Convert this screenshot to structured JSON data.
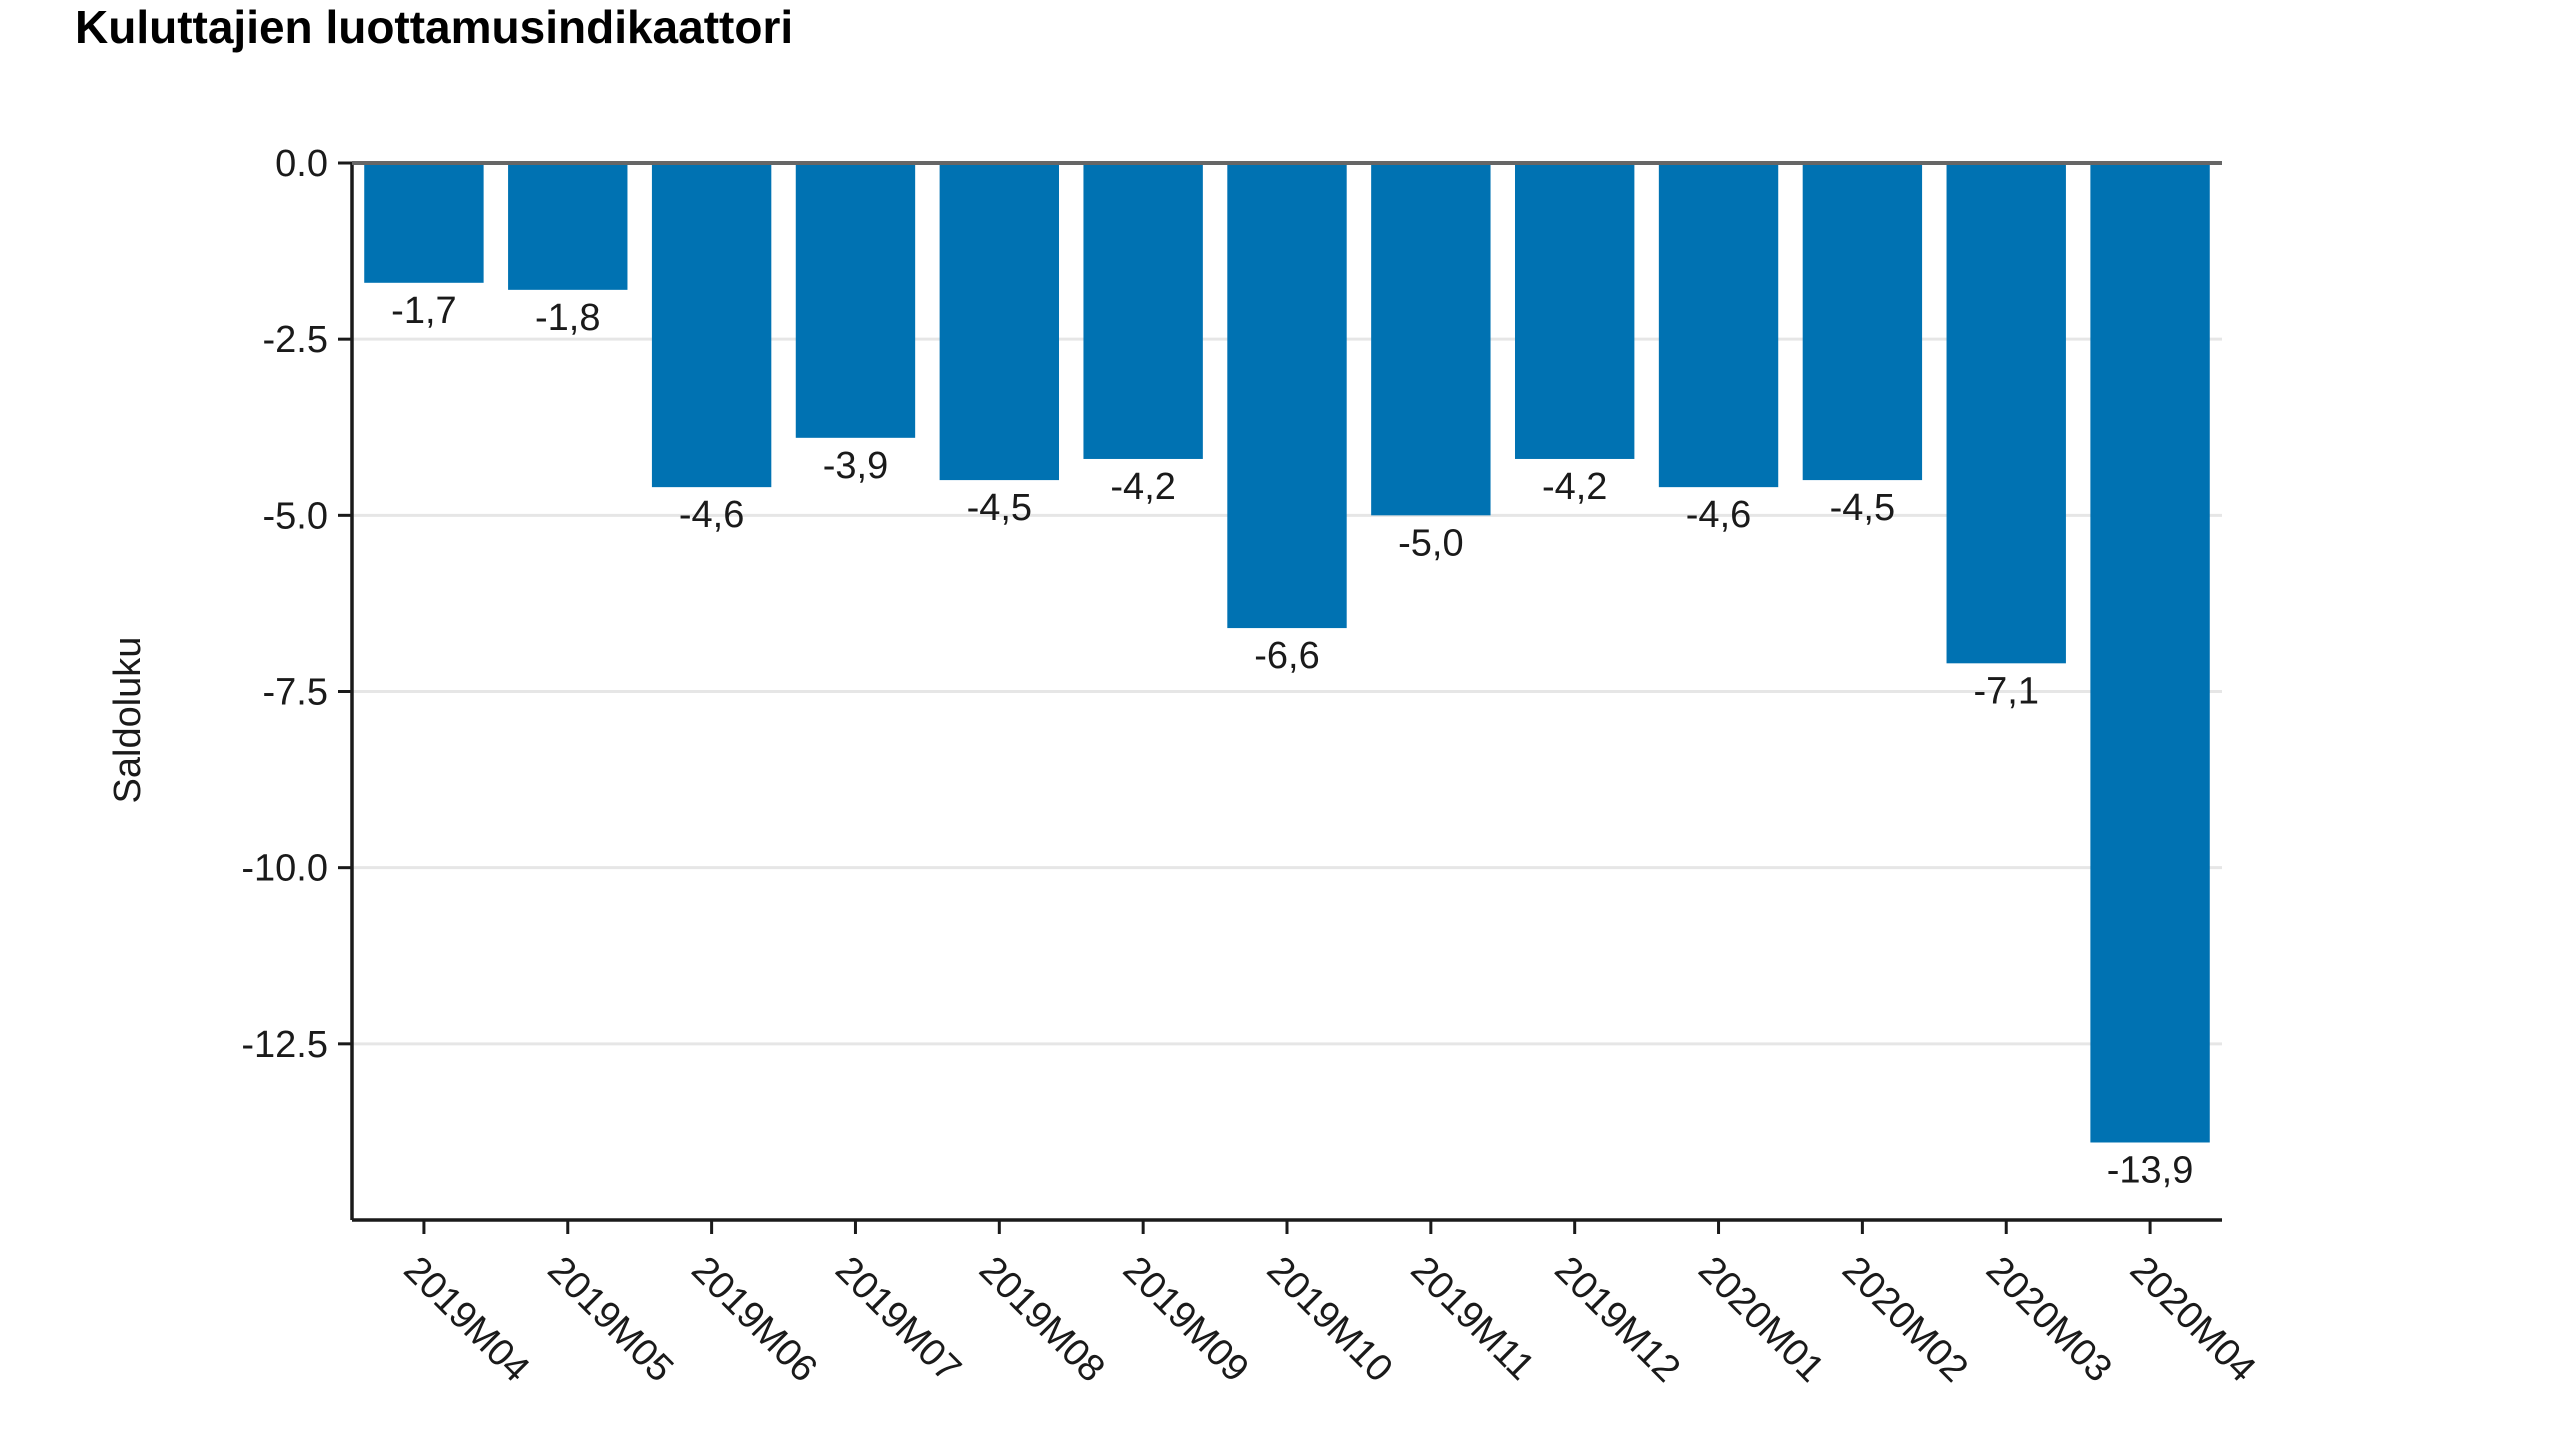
{
  "chart_data": {
    "type": "bar",
    "title": "Kuluttajien luottamusindikaattori",
    "xlabel": "",
    "ylabel": "Saldoluku",
    "categories": [
      "2019M04",
      "2019M05",
      "2019M06",
      "2019M07",
      "2019M08",
      "2019M09",
      "2019M10",
      "2019M11",
      "2019M12",
      "2020M01",
      "2020M02",
      "2020M03",
      "2020M04"
    ],
    "values": [
      -1.7,
      -1.8,
      -4.6,
      -3.9,
      -4.5,
      -4.2,
      -6.6,
      -5.0,
      -4.2,
      -4.6,
      -4.5,
      -7.1,
      -13.9
    ],
    "data_labels": [
      "-1,7",
      "-1,8",
      "-4,6",
      "-3,9",
      "-4,5",
      "-4,2",
      "-6,6",
      "-5,0",
      "-4,2",
      "-4,6",
      "-4,5",
      "-7,1",
      "-13,9"
    ],
    "yticks": [
      0.0,
      -2.5,
      -5.0,
      -7.5,
      -10.0,
      -12.5
    ],
    "ytick_labels": [
      "0.0",
      "-2.5",
      "-5.0",
      "-7.5",
      "-10.0",
      "-12.5"
    ],
    "ylim": [
      -15.0,
      0.0
    ],
    "grid": true,
    "legend": "none",
    "bar_color": "#0072b2",
    "grid_color": "#e6e6e6",
    "axis_color": "#1a1a1a"
  }
}
